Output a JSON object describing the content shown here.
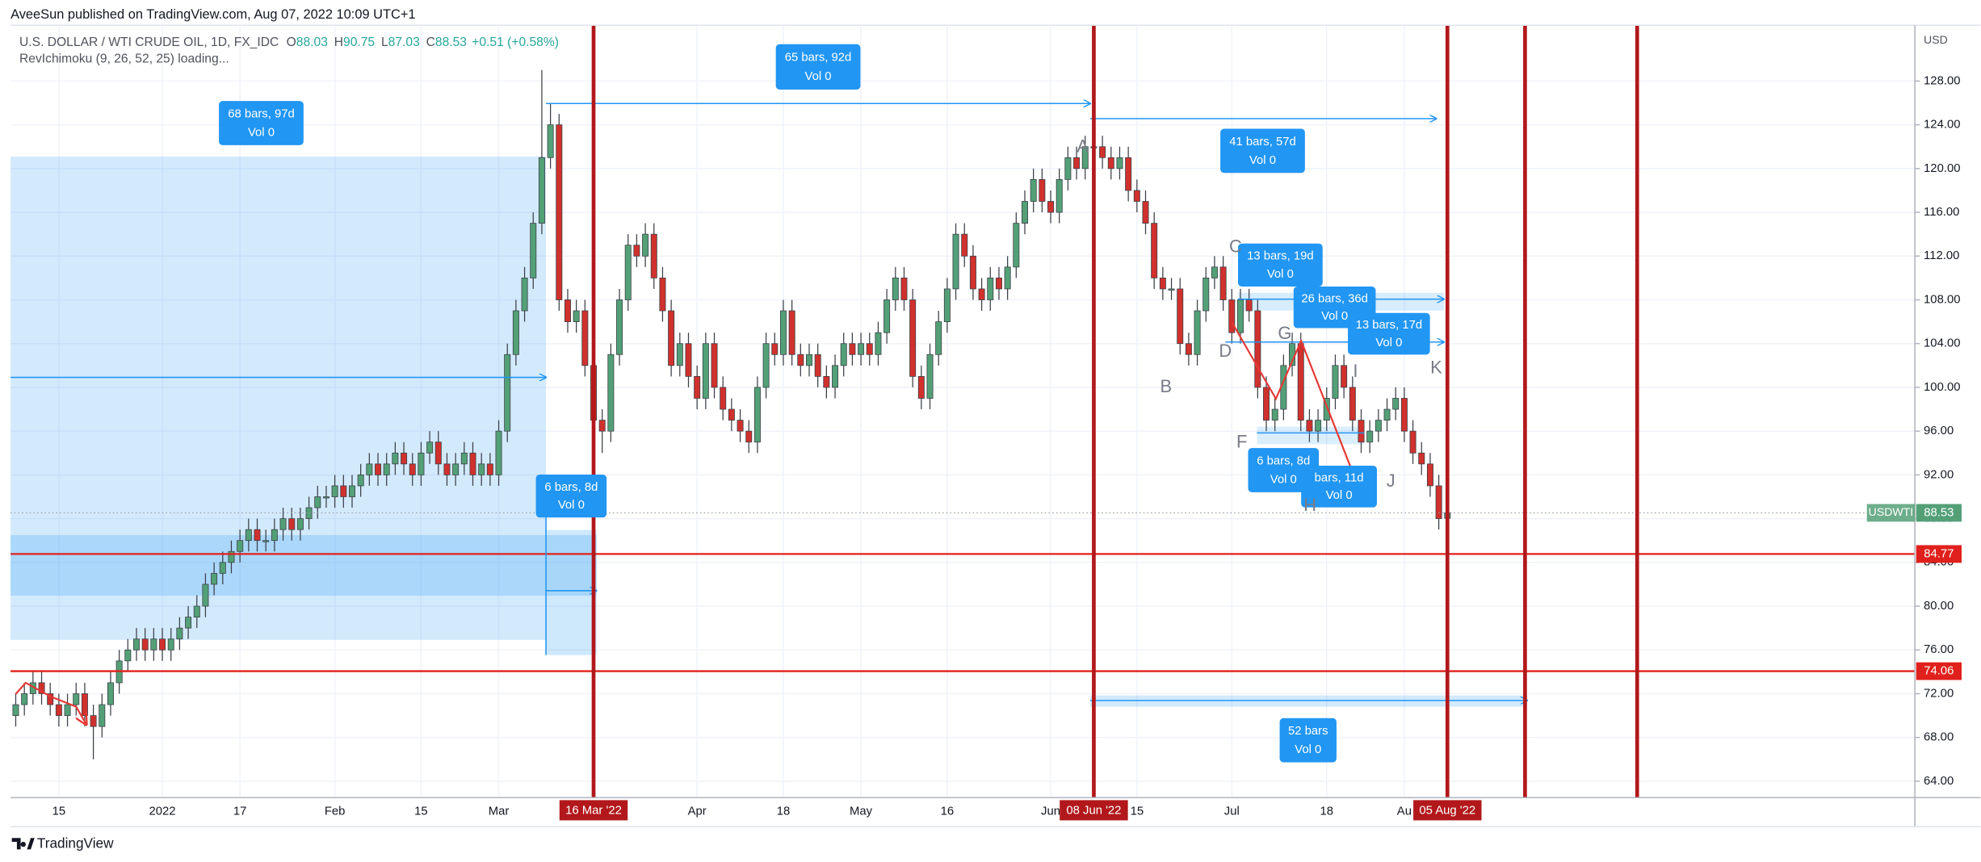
{
  "header": {
    "published": "AveeSun published on TradingView.com, Aug 07, 2022 10:09 UTC+1",
    "symbol": "U.S. DOLLAR / WTI CRUDE OIL, 1D, FX_IDC",
    "ohlc": [
      {
        "label": "O",
        "value": 88.03
      },
      {
        "label": "H",
        "value": 90.75
      },
      {
        "label": "L",
        "value": 87.03
      },
      {
        "label": "C",
        "value": 88.53
      }
    ],
    "change": "+0.51 (+0.58%)",
    "indicator": "RevIchimoku (9, 26, 52, 25) loading..."
  },
  "chart_data": {
    "type": "candlestick",
    "categories": [
      null,
      null,
      null,
      null,
      null,
      "15",
      null,
      null,
      null,
      null,
      null,
      null,
      null,
      null,
      null,
      null,
      null,
      "2022",
      null,
      null,
      null,
      null,
      null,
      null,
      null,
      null,
      "17",
      null,
      null,
      null,
      null,
      null,
      null,
      null,
      null,
      null,
      null,
      "Feb",
      null,
      null,
      null,
      null,
      null,
      null,
      null,
      null,
      null,
      "15",
      null,
      null,
      null,
      null,
      null,
      null,
      null,
      null,
      "Mar",
      null,
      null,
      null,
      null,
      null,
      null,
      null,
      null,
      null,
      null,
      null,
      null,
      null,
      null,
      null,
      null,
      null,
      null,
      null,
      null,
      null,
      null,
      "Apr",
      null,
      null,
      null,
      null,
      null,
      null,
      null,
      null,
      null,
      "18",
      null,
      null,
      null,
      null,
      null,
      null,
      null,
      null,
      "May",
      null,
      null,
      null,
      null,
      null,
      null,
      null,
      null,
      null,
      "16",
      null,
      null,
      null,
      null,
      null,
      null,
      null,
      null,
      null,
      null,
      null,
      "Jun",
      null,
      null,
      null,
      null,
      null,
      null,
      null,
      null,
      null,
      "15",
      null,
      null,
      null,
      null,
      null,
      null,
      null,
      null,
      null,
      null,
      "Jul",
      null,
      null,
      null,
      null,
      null,
      null,
      null,
      null,
      null,
      null,
      "18",
      null,
      null,
      null,
      null,
      null,
      null,
      null,
      null,
      "Au",
      null,
      null,
      null,
      null,
      null
    ],
    "open": [
      70,
      71,
      72,
      73,
      72,
      71,
      70,
      71,
      72,
      70,
      69,
      71,
      73,
      75,
      76,
      77,
      76,
      77,
      76,
      77,
      78,
      79,
      80,
      82,
      83,
      84,
      85,
      86,
      87,
      86,
      86,
      87,
      88,
      87,
      88,
      89,
      90,
      90,
      91,
      90,
      91,
      92,
      93,
      92,
      93,
      94,
      93,
      92,
      94,
      95,
      93,
      92,
      93,
      94,
      92,
      93,
      92,
      96,
      103,
      107,
      110,
      115,
      121,
      124,
      108,
      106,
      107,
      102,
      97,
      96,
      103,
      108,
      113,
      112,
      114,
      110,
      107,
      102,
      104,
      101,
      99,
      104,
      100,
      98,
      97,
      96,
      95,
      100,
      104,
      103,
      107,
      103,
      102,
      103,
      101,
      100,
      102,
      104,
      103,
      104,
      103,
      105,
      108,
      110,
      108,
      101,
      99,
      103,
      106,
      109,
      114,
      112,
      109,
      108,
      110,
      109,
      111,
      115,
      117,
      119,
      117,
      116,
      119,
      121,
      120,
      122,
      122,
      121,
      120,
      121,
      118,
      117,
      115,
      110,
      109,
      109,
      104,
      103,
      107,
      110,
      111,
      108,
      105,
      108,
      107,
      100,
      97,
      98,
      102,
      104,
      97,
      96,
      97,
      99,
      102,
      100,
      97,
      95,
      96,
      97,
      98,
      99,
      96,
      94,
      93,
      91,
      88.03
    ],
    "high": [
      72,
      73,
      74,
      74,
      73,
      72,
      72,
      73,
      73,
      71,
      72,
      74,
      76,
      77,
      78,
      78,
      78,
      78,
      78,
      79,
      80,
      81,
      83,
      84,
      85,
      86,
      87,
      88,
      88,
      87,
      88,
      89,
      89,
      89,
      90,
      91,
      91,
      92,
      92,
      92,
      93,
      94,
      94,
      94,
      95,
      95,
      94,
      95,
      96,
      96,
      94,
      94,
      95,
      95,
      94,
      94,
      97,
      104,
      108,
      111,
      116,
      129,
      126,
      125,
      109,
      108,
      108,
      103,
      98,
      104,
      109,
      114,
      114,
      115,
      115,
      111,
      108,
      105,
      105,
      102,
      105,
      105,
      101,
      99,
      98,
      97,
      101,
      105,
      105,
      108,
      108,
      104,
      104,
      104,
      102,
      103,
      105,
      105,
      105,
      105,
      106,
      109,
      111,
      111,
      109,
      102,
      104,
      107,
      110,
      115,
      115,
      113,
      110,
      111,
      111,
      112,
      116,
      118,
      120,
      120,
      118,
      120,
      122,
      122,
      123,
      123,
      123,
      122,
      122,
      122,
      119,
      118,
      116,
      111,
      110,
      110,
      105,
      108,
      111,
      112,
      112,
      109,
      109,
      109,
      108,
      101,
      99,
      103,
      105,
      105,
      98,
      98,
      100,
      103,
      103,
      101,
      98,
      97,
      98,
      99,
      100,
      100,
      97,
      95,
      94,
      92,
      90.75
    ],
    "low": [
      69,
      70,
      71,
      71,
      70,
      69,
      69,
      70,
      69,
      66,
      68,
      70,
      72,
      74,
      75,
      75,
      75,
      75,
      75,
      76,
      77,
      78,
      79,
      81,
      82,
      83,
      84,
      85,
      85,
      85,
      85,
      86,
      86,
      86,
      87,
      88,
      89,
      89,
      89,
      89,
      90,
      91,
      91,
      91,
      92,
      92,
      91,
      91,
      93,
      92,
      91,
      91,
      92,
      91,
      91,
      91,
      91,
      95,
      102,
      106,
      109,
      114,
      120,
      107,
      105,
      105,
      101,
      96,
      94,
      95,
      102,
      107,
      111,
      111,
      109,
      106,
      101,
      101,
      100,
      98,
      98,
      99,
      97,
      96,
      95,
      94,
      94,
      99,
      102,
      102,
      102,
      101,
      101,
      100,
      99,
      99,
      101,
      102,
      102,
      102,
      102,
      104,
      107,
      107,
      100,
      98,
      98,
      102,
      105,
      108,
      111,
      108,
      107,
      107,
      108,
      108,
      110,
      114,
      116,
      116,
      115,
      115,
      118,
      119,
      119,
      121,
      120,
      119,
      119,
      117,
      116,
      114,
      109,
      108,
      108,
      103,
      102,
      102,
      106,
      109,
      107,
      104,
      104,
      106,
      99,
      96,
      96,
      97,
      101,
      96,
      95,
      95,
      96,
      98,
      99,
      96,
      94,
      94,
      95,
      96,
      97,
      95,
      93,
      92,
      90,
      87,
      87.03
    ],
    "close": [
      71,
      72,
      73,
      72,
      71,
      70,
      71,
      72,
      70,
      69,
      71,
      73,
      75,
      76,
      77,
      76,
      77,
      76,
      77,
      78,
      79,
      80,
      82,
      83,
      84,
      85,
      86,
      87,
      86,
      86,
      87,
      88,
      87,
      88,
      89,
      90,
      90,
      91,
      90,
      91,
      92,
      93,
      92,
      93,
      94,
      93,
      92,
      94,
      95,
      93,
      92,
      93,
      94,
      92,
      93,
      92,
      96,
      103,
      107,
      110,
      115,
      121,
      124,
      108,
      106,
      107,
      102,
      97,
      96,
      103,
      108,
      113,
      112,
      114,
      110,
      107,
      102,
      104,
      101,
      99,
      104,
      100,
      98,
      97,
      96,
      95,
      100,
      104,
      103,
      107,
      103,
      102,
      103,
      101,
      100,
      102,
      104,
      103,
      104,
      103,
      105,
      108,
      110,
      108,
      101,
      99,
      103,
      106,
      109,
      114,
      112,
      109,
      108,
      110,
      109,
      111,
      115,
      117,
      119,
      117,
      116,
      119,
      121,
      120,
      122,
      122,
      121,
      120,
      121,
      118,
      117,
      115,
      110,
      109,
      109,
      104,
      103,
      107,
      110,
      111,
      108,
      105,
      108,
      107,
      100,
      97,
      98,
      102,
      104,
      97,
      96,
      97,
      99,
      102,
      100,
      97,
      95,
      96,
      97,
      98,
      99,
      96,
      94,
      93,
      91,
      88,
      88.53
    ],
    "up_color": "#53a077",
    "down_color": "#d0312d",
    "xlim": [
      -0.6,
      220.2
    ],
    "ylim": [
      62.5,
      133.1
    ],
    "yticks": [
      {
        "value": 64,
        "label": "64.00"
      },
      {
        "value": 68,
        "label": "68.00"
      },
      {
        "value": 72,
        "label": "72.00"
      },
      {
        "value": 76,
        "label": "76.00"
      },
      {
        "value": 80,
        "label": "80.00"
      },
      {
        "value": 84,
        "label": "84.00"
      },
      {
        "value": 88,
        "label": "88.00"
      },
      {
        "value": 92,
        "label": "92.00"
      },
      {
        "value": 96,
        "label": "96.00"
      },
      {
        "value": 100,
        "label": "100.00"
      },
      {
        "value": 104,
        "label": "104.00"
      },
      {
        "value": 108,
        "label": "108.00"
      },
      {
        "value": 112,
        "label": "112.00"
      },
      {
        "value": 116,
        "label": "116.00"
      },
      {
        "value": 120,
        "label": "120.00"
      },
      {
        "value": 124,
        "label": "124.00"
      },
      {
        "value": 128,
        "label": "128.00"
      }
    ],
    "grid": true,
    "currency": "USD",
    "symbol_tag": {
      "label": "USDWTI",
      "value": 88.53,
      "color": "#53a077"
    },
    "levels": [
      {
        "value": 84.77,
        "color": "#e0201c"
      },
      {
        "value": 74.06,
        "color": "#e0201c"
      }
    ],
    "date_markers": [
      {
        "label": "16 Mar '22",
        "x": 67
      },
      {
        "label": "08 Jun '22",
        "x": 125
      },
      {
        "label": "05 Aug '22",
        "x": 166
      },
      {
        "x": 175
      },
      {
        "x": 188
      }
    ],
    "marker_color": "#b2181b"
  },
  "annotations": {
    "ranges": [
      {
        "lines": [
          "68 bars, 97d",
          "Vol 0"
        ]
      },
      {
        "lines": [
          "65 bars, 92d",
          "Vol 0"
        ]
      },
      {
        "lines": [
          "41 bars, 57d",
          "Vol 0"
        ]
      },
      {
        "lines": [
          "6 bars, 8d",
          "Vol 0"
        ]
      },
      {
        "lines": [
          "13 bars, 19d",
          "Vol 0"
        ]
      },
      {
        "lines": [
          "26 bars, 36d",
          "Vol 0"
        ]
      },
      {
        "lines": [
          "13 bars, 17d",
          "Vol 0"
        ]
      },
      {
        "lines": [
          "6 bars, 8d",
          "Vol 0"
        ]
      },
      {
        "lines": [
          "bars, 11d",
          "Vol 0"
        ]
      },
      {
        "lines": [
          "52 bars",
          "Vol 0"
        ]
      }
    ],
    "points": [
      "A",
      "B",
      "C",
      "D",
      "F",
      "G",
      "H",
      "I",
      "J",
      "K"
    ]
  },
  "footer": {
    "brand": "TradingView"
  }
}
